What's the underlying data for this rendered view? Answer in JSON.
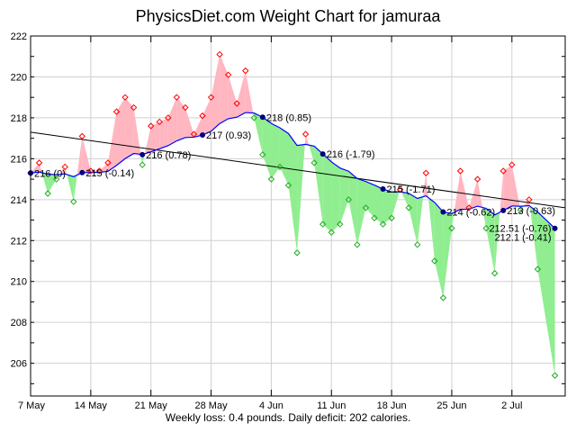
{
  "chart_data": {
    "type": "line",
    "title": "PhysicsDiet.com Weight Chart for jamuraa",
    "footer": "Weekly loss: 0.4 pounds. Daily deficit: 202 calories.",
    "ylim": [
      204.4,
      222
    ],
    "y_ticks": [
      206,
      208,
      210,
      212,
      214,
      216,
      218,
      220,
      222
    ],
    "x_tick_labels": [
      "7 May",
      "14 May",
      "21 May",
      "28 May",
      "4 Jun",
      "11 Jun",
      "18 Jun",
      "25 Jun",
      "2 Jul"
    ],
    "grid": true,
    "colors": {
      "above_fill": "#ffb6c1",
      "below_fill": "#90ee90",
      "above_marker": "#ff0000",
      "below_marker": "#22aa22",
      "trend": "#0000ff",
      "regression": "#000000",
      "label_dot": "#000080",
      "grid": "#d0d0d0"
    },
    "dates": [
      "7 May",
      "8 May",
      "9 May",
      "10 May",
      "11 May",
      "12 May",
      "13 May",
      "14 May",
      "15 May",
      "16 May",
      "17 May",
      "18 May",
      "19 May",
      "20 May",
      "21 May",
      "22 May",
      "23 May",
      "24 May",
      "25 May",
      "26 May",
      "27 May",
      "28 May",
      "29 May",
      "30 May",
      "31 May",
      "1 Jun",
      "2 Jun",
      "3 Jun",
      "4 Jun",
      "5 Jun",
      "6 Jun",
      "7 Jun",
      "8 Jun",
      "9 Jun",
      "10 Jun",
      "11 Jun",
      "12 Jun",
      "13 Jun",
      "14 Jun",
      "15 Jun",
      "16 Jun",
      "17 Jun",
      "18 Jun",
      "19 Jun",
      "20 Jun",
      "21 Jun",
      "22 Jun",
      "23 Jun",
      "24 Jun",
      "25 Jun",
      "26 Jun",
      "27 Jun",
      "28 Jun",
      "29 Jun",
      "30 Jun",
      "1 Jul",
      "2 Jul",
      "3 Jul",
      "4 Jul",
      "5 Jul",
      "6 Jul",
      "7 Jul"
    ],
    "series": [
      {
        "values": [
          215.3,
          215.8,
          214.3,
          215.0,
          215.6,
          213.9,
          217.1,
          215.4,
          215.4,
          215.8,
          218.3,
          219.0,
          218.5,
          215.7,
          217.6,
          217.8,
          218.0,
          219.0,
          218.5,
          217.2,
          218.1,
          219.0,
          221.1,
          220.1,
          218.7,
          220.3,
          218.0,
          216.2,
          215.0,
          215.6,
          214.7,
          211.4,
          217.2,
          215.8,
          212.8,
          212.4,
          212.8,
          214.0,
          211.8,
          213.6,
          213.1,
          212.8,
          213.1,
          214.5,
          213.6,
          211.8,
          215.3,
          211.0,
          209.2,
          212.6,
          215.4,
          213.6,
          215.0,
          212.6,
          210.4,
          215.4,
          215.7,
          213.5,
          214.0,
          210.6,
          null,
          205.4
        ]
      }
    ],
    "regression_line": {
      "start": 217.3,
      "end": 213.6
    },
    "annotations": [
      {
        "date": "7 May",
        "text": "216 (0)"
      },
      {
        "date": "13 May",
        "text": "215 (-0.14)"
      },
      {
        "date": "20 May",
        "text": "216 (0.78)"
      },
      {
        "date": "27 May",
        "text": "217 (0.93)"
      },
      {
        "date": "3 Jun",
        "text": "218 (0.85)"
      },
      {
        "date": "10 Jun",
        "text": "216 (-1.79)"
      },
      {
        "date": "17 Jun",
        "text": "215 (-1.71)"
      },
      {
        "date": "24 Jun",
        "text": "214 (-0.62)"
      },
      {
        "date": "1 Jul",
        "text": "213 (-0.63)"
      },
      {
        "date": "7 Jul",
        "text": "212.51 (-0.76)"
      },
      {
        "date": "7 Jul",
        "text": "212.1 (-0.41)"
      }
    ]
  }
}
